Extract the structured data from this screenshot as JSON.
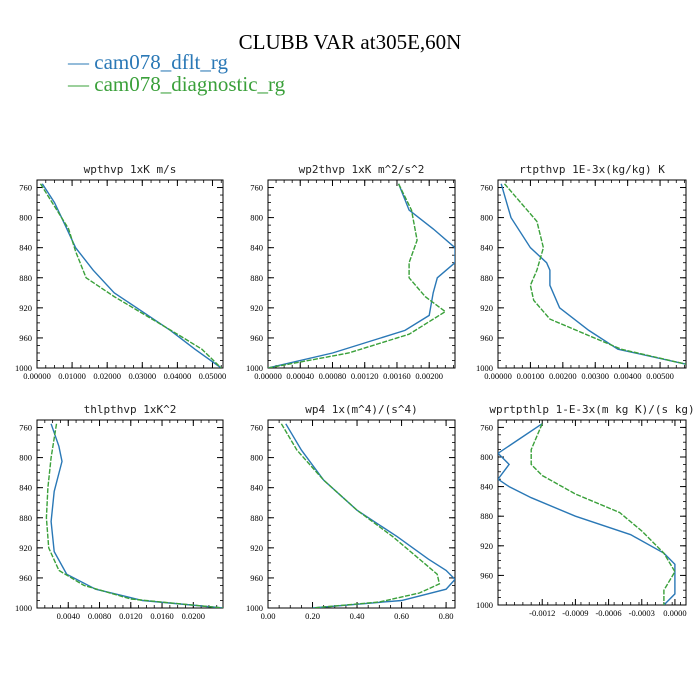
{
  "figure": {
    "title": "CLUBB VAR at305E,60N",
    "legend": [
      {
        "label": "— cam078_dflt_rg",
        "color": "#2a78b6"
      },
      {
        "label": "— cam078_diagnostic_rg",
        "color": "#3aa03a"
      }
    ]
  },
  "chart_data": [
    {
      "type": "line",
      "title": "wpthvp   1xK m/s",
      "xlim": [
        0.0,
        0.053
      ],
      "ylim": [
        1000,
        750
      ],
      "y_reversed": true,
      "xticks": [
        0,
        0.01,
        0.02,
        0.03,
        0.04,
        0.05
      ],
      "xtick_labels": [
        "0.00000",
        "0.01000",
        "0.02000",
        "0.03000",
        "0.04000",
        "0.05000"
      ],
      "yticks": [
        760,
        800,
        840,
        880,
        920,
        960,
        1000
      ],
      "series": [
        {
          "name": "cam078_dflt_rg",
          "x": [
            0.0015,
            0.005,
            0.008,
            0.011,
            0.016,
            0.022,
            0.03,
            0.038,
            0.045,
            0.0525
          ],
          "y": [
            755,
            780,
            810,
            840,
            870,
            900,
            925,
            950,
            975,
            1000
          ]
        },
        {
          "name": "cam078_diagnostic_rg",
          "x": [
            0.001,
            0.005,
            0.009,
            0.011,
            0.014,
            0.022,
            0.031,
            0.04,
            0.047,
            0.0525
          ],
          "y": [
            755,
            785,
            815,
            845,
            880,
            905,
            930,
            955,
            975,
            1000
          ]
        }
      ]
    },
    {
      "type": "line",
      "title": "wp2thvp   1xK m^2/s^2",
      "xlim": [
        0.0,
        0.00232
      ],
      "ylim": [
        1000,
        750
      ],
      "y_reversed": true,
      "xticks": [
        0,
        0.0004,
        0.0008,
        0.0012,
        0.0016,
        0.002
      ],
      "xtick_labels": [
        "0.00000",
        "0.00040",
        "0.00080",
        "0.00120",
        "0.00160",
        "0.00200"
      ],
      "yticks": [
        760,
        800,
        840,
        880,
        920,
        960,
        1000
      ],
      "series": [
        {
          "name": "cam078_dflt_rg",
          "x": [
            0.00162,
            0.00175,
            0.00205,
            0.00232,
            0.00232,
            0.0021,
            0.00205,
            0.002,
            0.0017,
            0.0008,
            0.0
          ],
          "y": [
            755,
            790,
            815,
            840,
            860,
            880,
            900,
            930,
            950,
            980,
            1000
          ]
        },
        {
          "name": "cam078_diagnostic_rg",
          "x": [
            0.00162,
            0.00178,
            0.00185,
            0.00175,
            0.00175,
            0.00195,
            0.0022,
            0.00175,
            0.001,
            0.0
          ],
          "y": [
            755,
            790,
            830,
            860,
            880,
            905,
            925,
            955,
            980,
            1000
          ]
        }
      ]
    },
    {
      "type": "line",
      "title": "rtpthvp   1E-3x(kg/kg) K",
      "xlim": [
        0.0,
        0.0058
      ],
      "ylim": [
        1000,
        750
      ],
      "y_reversed": true,
      "xticks": [
        0,
        0.001,
        0.002,
        0.003,
        0.004,
        0.005
      ],
      "xtick_labels": [
        "0.00000",
        "0.00100",
        "0.00200",
        "0.00300",
        "0.00400",
        "0.00500"
      ],
      "yticks": [
        760,
        800,
        840,
        880,
        920,
        960,
        1000
      ],
      "series": [
        {
          "name": "cam078_dflt_rg",
          "x": [
            0.0001,
            0.0004,
            0.001,
            0.0015,
            0.0016,
            0.0016,
            0.0019,
            0.0028,
            0.0037,
            0.0058
          ],
          "y": [
            755,
            800,
            840,
            860,
            870,
            890,
            920,
            950,
            975,
            995
          ]
        },
        {
          "name": "cam078_diagnostic_rg",
          "x": [
            0.0002,
            0.0012,
            0.0014,
            0.0012,
            0.001,
            0.0011,
            0.0016,
            0.0027,
            0.0038,
            0.0058
          ],
          "y": [
            755,
            805,
            840,
            870,
            890,
            910,
            935,
            955,
            975,
            995
          ]
        }
      ]
    },
    {
      "type": "line",
      "title": "thlpthvp   1xK^2",
      "xlim": [
        0.0,
        0.0238
      ],
      "ylim": [
        1000,
        750
      ],
      "y_reversed": true,
      "xticks": [
        0.004,
        0.008,
        0.012,
        0.016,
        0.02
      ],
      "xtick_labels": [
        "0.0040",
        "0.0080",
        "0.0120",
        "0.0160",
        "0.0200"
      ],
      "yticks": [
        760,
        800,
        840,
        880,
        920,
        960,
        1000
      ],
      "series": [
        {
          "name": "cam078_dflt_rg",
          "x": [
            0.0018,
            0.0028,
            0.0032,
            0.0022,
            0.0018,
            0.0022,
            0.0038,
            0.0075,
            0.0135,
            0.0238
          ],
          "y": [
            755,
            785,
            805,
            845,
            885,
            925,
            955,
            975,
            990,
            1000
          ]
        },
        {
          "name": "cam078_diagnostic_rg",
          "x": [
            0.0025,
            0.0018,
            0.0014,
            0.0012,
            0.0015,
            0.0028,
            0.006,
            0.012,
            0.0238
          ],
          "y": [
            755,
            800,
            840,
            880,
            920,
            950,
            970,
            988,
            1000
          ]
        }
      ]
    },
    {
      "type": "line",
      "title": "wp4   1x(m^4)/(s^4)",
      "xlim": [
        0.0,
        0.84
      ],
      "ylim": [
        1000,
        750
      ],
      "y_reversed": true,
      "xticks": [
        0,
        0.2,
        0.4,
        0.6,
        0.8
      ],
      "xtick_labels": [
        "0.00",
        "0.20",
        "0.40",
        "0.60",
        "0.80"
      ],
      "yticks": [
        760,
        800,
        840,
        880,
        920,
        960,
        1000
      ],
      "series": [
        {
          "name": "cam078_dflt_rg",
          "x": [
            0.08,
            0.15,
            0.25,
            0.4,
            0.58,
            0.72,
            0.8,
            0.84,
            0.8,
            0.6,
            0.2
          ],
          "y": [
            755,
            790,
            830,
            870,
            905,
            935,
            950,
            962,
            975,
            990,
            1000
          ]
        },
        {
          "name": "cam078_diagnostic_rg",
          "x": [
            0.06,
            0.13,
            0.25,
            0.4,
            0.56,
            0.68,
            0.76,
            0.77,
            0.68,
            0.5,
            0.2
          ],
          "y": [
            755,
            790,
            830,
            870,
            905,
            935,
            955,
            968,
            980,
            992,
            1000
          ]
        }
      ]
    },
    {
      "type": "line",
      "title": "wprtpthlp   1-E-3x(m kg K)/(s kg)",
      "xlim": [
        -0.0016,
        0.0001
      ],
      "ylim": [
        1000,
        750
      ],
      "y_reversed": true,
      "xticks": [
        -0.0012,
        -0.0009,
        -0.0006,
        -0.0003,
        0.0
      ],
      "xtick_labels": [
        "-0.0012",
        "-0.0009",
        "-0.0006",
        "-0.0003",
        "0.0000"
      ],
      "yticks": [
        760,
        800,
        840,
        880,
        920,
        960,
        1000
      ],
      "series": [
        {
          "name": "cam078_dflt_rg",
          "x": [
            -0.0012,
            -0.0014,
            -0.0016,
            -0.0015,
            -0.0016,
            -0.0015,
            -0.0013,
            -0.0009,
            -0.0004,
            -0.0001,
            0.0,
            0.0,
            0.0,
            -0.0001
          ],
          "y": [
            755,
            775,
            795,
            810,
            830,
            840,
            855,
            880,
            905,
            930,
            945,
            965,
            985,
            1000
          ]
        },
        {
          "name": "cam078_diagnostic_rg",
          "x": [
            -0.0012,
            -0.0013,
            -0.0013,
            -0.0012,
            -0.0009,
            -0.0005,
            -0.0003,
            -0.0001,
            0.0,
            -0.0001,
            -0.0001
          ],
          "y": [
            755,
            790,
            810,
            825,
            850,
            875,
            900,
            930,
            955,
            980,
            1000
          ]
        }
      ]
    }
  ]
}
